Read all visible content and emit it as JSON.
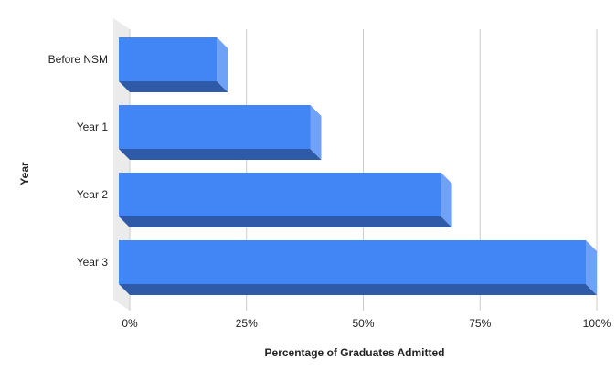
{
  "chart_data": {
    "type": "bar3d",
    "orientation": "horizontal",
    "categories": [
      "Before NSM",
      "Year 1",
      "Year 2",
      "Year 3"
    ],
    "values": [
      21,
      41,
      69,
      100
    ],
    "color": "#4285f4",
    "xlim": [
      0,
      100
    ],
    "xticks": [
      {
        "value": 0,
        "label": "0%"
      },
      {
        "value": 25,
        "label": "25%"
      },
      {
        "value": 50,
        "label": "50%"
      },
      {
        "value": 75,
        "label": "75%"
      },
      {
        "value": 100,
        "label": "100%"
      }
    ],
    "x_label": "Percentage of Graduates Admitted",
    "y_label": "Year",
    "grid": true
  }
}
